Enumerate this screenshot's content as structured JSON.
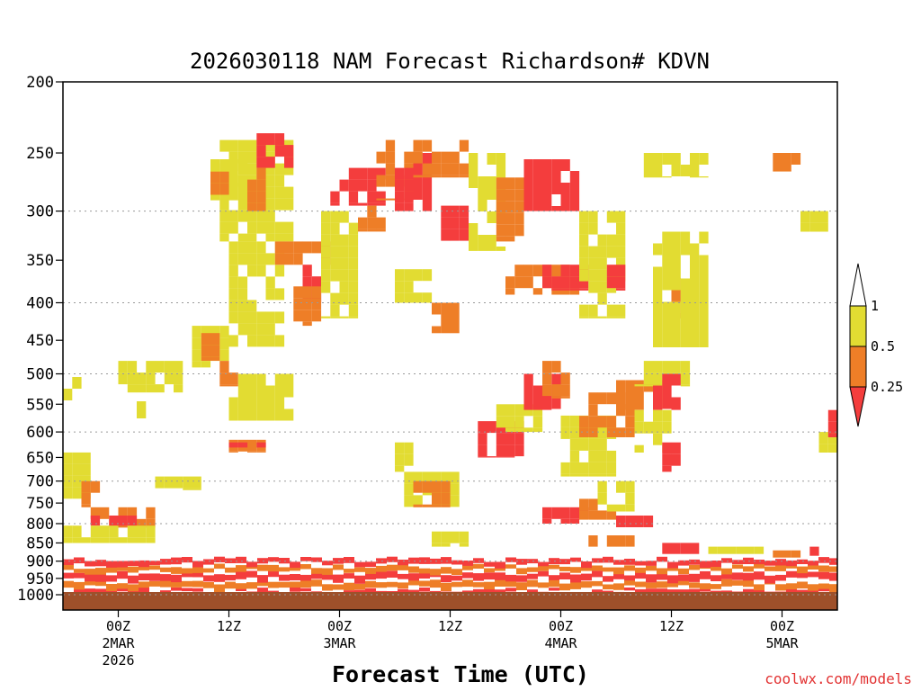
{
  "chart_data": {
    "type": "heatmap",
    "title": "2026030118 NAM Forecast Richardson# KDVN",
    "xlabel": "Forecast Time (UTC)",
    "ylabel": "",
    "credit": "coolwx.com/models",
    "y_axis": {
      "scale": "pressure (log)",
      "range": [
        1000,
        200
      ],
      "ticks": [
        "200",
        "250",
        "300",
        "350",
        "400",
        "450",
        "500",
        "550",
        "600",
        "650",
        "700",
        "750",
        "800",
        "850",
        "900",
        "950",
        "1000"
      ],
      "gridlines_at": [
        300,
        400,
        500,
        600,
        700,
        800,
        900,
        1000
      ]
    },
    "x_axis": {
      "range_hours_from_init": [
        0,
        84
      ],
      "ticks": [
        {
          "hour": 6,
          "label": "00Z",
          "date": "2MAR",
          "year": "2026"
        },
        {
          "hour": 18,
          "label": "12Z",
          "date": "",
          "year": ""
        },
        {
          "hour": 30,
          "label": "00Z",
          "date": "3MAR",
          "year": ""
        },
        {
          "hour": 42,
          "label": "12Z",
          "date": "",
          "year": ""
        },
        {
          "hour": 54,
          "label": "00Z",
          "date": "4MAR",
          "year": ""
        },
        {
          "hour": 66,
          "label": "12Z",
          "date": "",
          "year": ""
        },
        {
          "hour": 78,
          "label": "00Z",
          "date": "5MAR",
          "year": ""
        }
      ]
    },
    "legend": {
      "placement": "right",
      "levels": [
        "1",
        "0.5",
        "0.25"
      ],
      "bins": [
        {
          "range": "> 1",
          "color": "#ffffff"
        },
        {
          "range": "0.5 – 1",
          "color": "#e2dc32"
        },
        {
          "range": "0.25 – 0.5",
          "color": "#ee7e27"
        },
        {
          "range": "< 0.25",
          "color": "#f43d3d"
        }
      ]
    },
    "surface_color": "#9e502a",
    "colors": {
      "yellow": "#e2dc32",
      "orange": "#ee7e27",
      "red": "#f43d3d",
      "grid": "#9a9a9a"
    },
    "regions": [
      {
        "h": [
          6,
          13
        ],
        "p": [
          480,
          530
        ],
        "c": "yellow"
      },
      {
        "h": [
          0,
          2
        ],
        "p": [
          505,
          545
        ],
        "c": "yellow"
      },
      {
        "h": [
          8,
          9
        ],
        "p": [
          545,
          575
        ],
        "c": "yellow"
      },
      {
        "h": [
          14,
          18
        ],
        "p": [
          430,
          490
        ],
        "c": "yellow"
      },
      {
        "h": [
          15,
          17
        ],
        "p": [
          440,
          480
        ],
        "c": "orange"
      },
      {
        "h": [
          17,
          19
        ],
        "p": [
          480,
          520
        ],
        "c": "orange"
      },
      {
        "h": [
          18,
          25
        ],
        "p": [
          500,
          580
        ],
        "c": "yellow"
      },
      {
        "h": [
          18,
          24
        ],
        "p": [
          330,
          460
        ],
        "c": "yellow"
      },
      {
        "h": [
          17,
          25
        ],
        "p": [
          240,
          330
        ],
        "c": "yellow"
      },
      {
        "h": [
          16,
          20
        ],
        "p": [
          255,
          290
        ],
        "c": "yellow"
      },
      {
        "h": [
          16,
          19
        ],
        "p": [
          265,
          285
        ],
        "c": "orange"
      },
      {
        "h": [
          21,
          25
        ],
        "p": [
          235,
          262
        ],
        "c": "red"
      },
      {
        "h": [
          20,
          22
        ],
        "p": [
          262,
          300
        ],
        "c": "orange"
      },
      {
        "h": [
          23,
          29
        ],
        "p": [
          330,
          355
        ],
        "c": "orange"
      },
      {
        "h": [
          26,
          28
        ],
        "p": [
          355,
          400
        ],
        "c": "red"
      },
      {
        "h": [
          25,
          28
        ],
        "p": [
          380,
          430
        ],
        "c": "orange"
      },
      {
        "h": [
          28,
          32
        ],
        "p": [
          300,
          420
        ],
        "c": "yellow"
      },
      {
        "h": [
          29,
          35
        ],
        "p": [
          262,
          295
        ],
        "c": "red"
      },
      {
        "h": [
          32,
          35
        ],
        "p": [
          295,
          320
        ],
        "c": "orange"
      },
      {
        "h": [
          34,
          38
        ],
        "p": [
          240,
          290
        ],
        "c": "orange"
      },
      {
        "h": [
          36,
          38
        ],
        "p": [
          262,
          300
        ],
        "c": "red"
      },
      {
        "h": [
          38,
          40
        ],
        "p": [
          250,
          300
        ],
        "c": "red"
      },
      {
        "h": [
          38,
          44
        ],
        "p": [
          240,
          270
        ],
        "c": "orange"
      },
      {
        "h": [
          41,
          44
        ],
        "p": [
          295,
          330
        ],
        "c": "red"
      },
      {
        "h": [
          36,
          40
        ],
        "p": [
          360,
          400
        ],
        "c": "yellow"
      },
      {
        "h": [
          40,
          43
        ],
        "p": [
          400,
          440
        ],
        "c": "orange"
      },
      {
        "h": [
          44,
          48
        ],
        "p": [
          250,
          340
        ],
        "c": "yellow"
      },
      {
        "h": [
          47,
          50
        ],
        "p": [
          270,
          330
        ],
        "c": "orange"
      },
      {
        "h": [
          50,
          56
        ],
        "p": [
          255,
          300
        ],
        "c": "red"
      },
      {
        "h": [
          48,
          56
        ],
        "p": [
          355,
          390
        ],
        "c": "orange"
      },
      {
        "h": [
          52,
          57
        ],
        "p": [
          355,
          385
        ],
        "c": "red"
      },
      {
        "h": [
          56,
          61
        ],
        "p": [
          300,
          420
        ],
        "c": "yellow"
      },
      {
        "h": [
          59,
          61
        ],
        "p": [
          355,
          385
        ],
        "c": "red"
      },
      {
        "h": [
          66,
          68
        ],
        "p": [
          370,
          420
        ],
        "c": "orange"
      },
      {
        "h": [
          64,
          70
        ],
        "p": [
          320,
          460
        ],
        "c": "yellow"
      },
      {
        "h": [
          63,
          70
        ],
        "p": [
          250,
          270
        ],
        "c": "yellow"
      },
      {
        "h": [
          77,
          80
        ],
        "p": [
          250,
          265
        ],
        "c": "orange"
      },
      {
        "h": [
          80,
          83
        ],
        "p": [
          300,
          320
        ],
        "c": "yellow"
      },
      {
        "h": [
          45,
          50
        ],
        "p": [
          580,
          650
        ],
        "c": "red"
      },
      {
        "h": [
          47,
          52
        ],
        "p": [
          550,
          600
        ],
        "c": "yellow"
      },
      {
        "h": [
          50,
          54
        ],
        "p": [
          500,
          560
        ],
        "c": "red"
      },
      {
        "h": [
          52,
          55
        ],
        "p": [
          480,
          540
        ],
        "c": "orange"
      },
      {
        "h": [
          54,
          60
        ],
        "p": [
          570,
          690
        ],
        "c": "yellow"
      },
      {
        "h": [
          56,
          62
        ],
        "p": [
          530,
          610
        ],
        "c": "orange"
      },
      {
        "h": [
          60,
          65
        ],
        "p": [
          510,
          560
        ],
        "c": "orange"
      },
      {
        "h": [
          62,
          68
        ],
        "p": [
          480,
          520
        ],
        "c": "yellow"
      },
      {
        "h": [
          64,
          67
        ],
        "p": [
          500,
          560
        ],
        "c": "red"
      },
      {
        "h": [
          62,
          66
        ],
        "p": [
          560,
          640
        ],
        "c": "yellow"
      },
      {
        "h": [
          65,
          67
        ],
        "p": [
          620,
          680
        ],
        "c": "red"
      },
      {
        "h": [
          37,
          43
        ],
        "p": [
          680,
          760
        ],
        "c": "yellow"
      },
      {
        "h": [
          38,
          42
        ],
        "p": [
          700,
          760
        ],
        "c": "orange"
      },
      {
        "h": [
          36,
          38
        ],
        "p": [
          620,
          680
        ],
        "c": "yellow"
      },
      {
        "h": [
          52,
          57
        ],
        "p": [
          760,
          800
        ],
        "c": "red"
      },
      {
        "h": [
          56,
          60
        ],
        "p": [
          740,
          790
        ],
        "c": "orange"
      },
      {
        "h": [
          58,
          62
        ],
        "p": [
          700,
          770
        ],
        "c": "yellow"
      },
      {
        "h": [
          60,
          64
        ],
        "p": [
          780,
          810
        ],
        "c": "red"
      },
      {
        "h": [
          0,
          3
        ],
        "p": [
          640,
          740
        ],
        "c": "yellow"
      },
      {
        "h": [
          2,
          4
        ],
        "p": [
          700,
          760
        ],
        "c": "orange"
      },
      {
        "h": [
          3,
          10
        ],
        "p": [
          760,
          810
        ],
        "c": "orange"
      },
      {
        "h": [
          3,
          8
        ],
        "p": [
          780,
          805
        ],
        "c": "red"
      },
      {
        "h": [
          0,
          10
        ],
        "p": [
          805,
          850
        ],
        "c": "yellow"
      },
      {
        "h": [
          18,
          22
        ],
        "p": [
          615,
          640
        ],
        "c": "orange"
      },
      {
        "h": [
          18,
          22
        ],
        "p": [
          620,
          630
        ],
        "c": "red"
      },
      {
        "h": [
          10,
          15
        ],
        "p": [
          690,
          720
        ],
        "c": "yellow"
      },
      {
        "h": [
          82,
          84
        ],
        "p": [
          600,
          640
        ],
        "c": "yellow"
      },
      {
        "h": [
          83,
          84
        ],
        "p": [
          560,
          610
        ],
        "c": "red"
      },
      {
        "h": [
          40,
          44
        ],
        "p": [
          820,
          860
        ],
        "c": "yellow"
      },
      {
        "h": [
          56,
          62
        ],
        "p": [
          830,
          860
        ],
        "c": "orange"
      },
      {
        "h": [
          64,
          70
        ],
        "p": [
          850,
          880
        ],
        "c": "red"
      },
      {
        "h": [
          70,
          76
        ],
        "p": [
          860,
          880
        ],
        "c": "yellow"
      },
      {
        "h": [
          76,
          80
        ],
        "p": [
          870,
          890
        ],
        "c": "orange"
      },
      {
        "h": [
          80,
          84
        ],
        "p": [
          860,
          885
        ],
        "c": "red"
      }
    ],
    "boundary_layer": {
      "description": "stratified bands near surface",
      "bands": [
        {
          "p": [
            985,
            1000
          ],
          "c": "red"
        },
        {
          "p": [
            960,
            985
          ],
          "c": "orange"
        },
        {
          "p": [
            935,
            960
          ],
          "c": "red"
        },
        {
          "p": [
            915,
            935
          ],
          "c": "orange"
        },
        {
          "p": [
            895,
            915
          ],
          "c": "red"
        }
      ]
    }
  }
}
